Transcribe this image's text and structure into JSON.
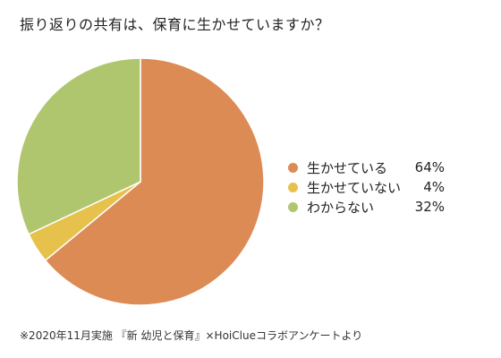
{
  "chart_data": {
    "type": "pie",
    "title": "振り返りの共有は、保育に生かせていますか？",
    "categories": [
      "生かせている",
      "生かせていない",
      "わからない"
    ],
    "values": [
      64,
      4,
      32
    ],
    "value_labels": [
      "64%",
      "4%",
      "32%"
    ],
    "colors": [
      "#dc8b55",
      "#e6c14c",
      "#b0c66e"
    ],
    "legend_position": "right",
    "start_angle": "12 o'clock",
    "direction": "clockwise"
  },
  "footer": {
    "source": "※2020年11月実施 『新 幼児と保育』×HoiClueコラボアンケートより"
  }
}
